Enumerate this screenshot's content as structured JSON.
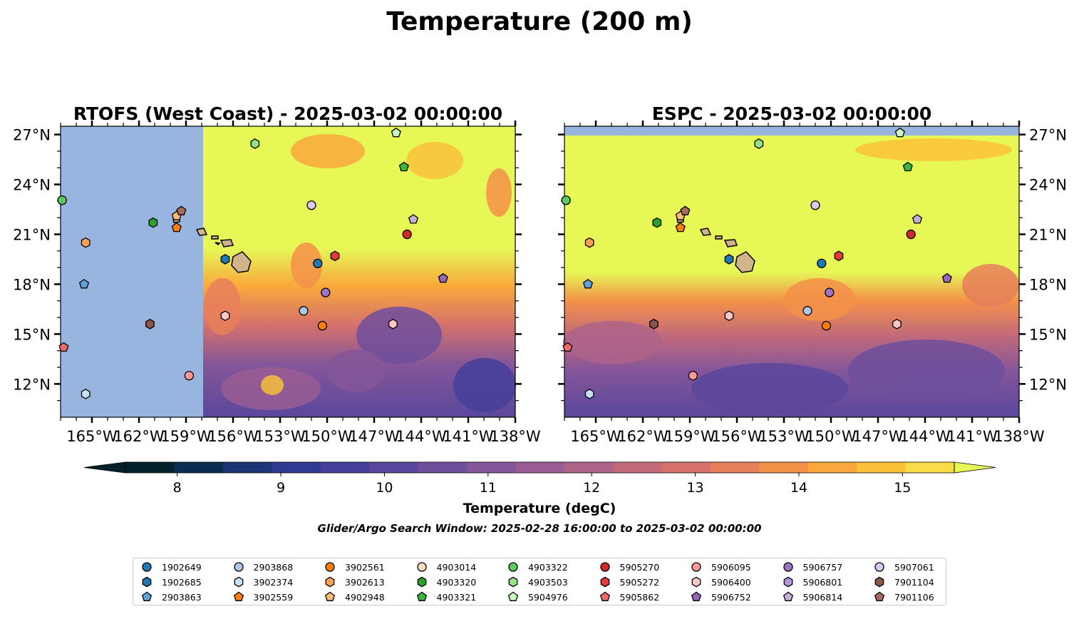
{
  "title": "Temperature (200 m)",
  "panels": [
    {
      "title": "RTOFS (West Coast) - 2025-03-02 00:00:00"
    },
    {
      "title": "ESPC - 2025-03-02 00:00:00"
    }
  ],
  "colorbar": {
    "label": "Temperature (degC)",
    "ticks": [
      "8",
      "9",
      "10",
      "11",
      "12",
      "13",
      "14",
      "15"
    ],
    "range": [
      7.5,
      15.5
    ],
    "step": 0.5,
    "colors": [
      "#03212c",
      "#0a2c4e",
      "#1b3575",
      "#2f3a92",
      "#44409a",
      "#5a479c",
      "#6f4f9c",
      "#845699",
      "#995d93",
      "#ae6389",
      "#c26a7b",
      "#d6726b",
      "#e77f5a",
      "#f49149",
      "#f9a83c",
      "#fbc13a",
      "#f8dc48"
    ],
    "extend_colors": {
      "under": "#03212c",
      "over": "#e6f756"
    }
  },
  "subtitle": "Glider/Argo Search Window: 2025-02-28 16:00:00 to 2025-03-02 00:00:00",
  "map": {
    "lon_range": [
      -167.0,
      -138.0
    ],
    "lat_range": [
      10.0,
      27.5
    ],
    "x_ticks": [
      "165°W",
      "162°W",
      "159°W",
      "156°W",
      "153°W",
      "150°W",
      "147°W",
      "144°W",
      "141°W",
      "138°W"
    ],
    "y_ticks": [
      "27°N",
      "24°N",
      "21°N",
      "18°N",
      "15°N",
      "12°N"
    ],
    "land_color": "#d2b48c",
    "nodata_color": "#98b5e0"
  },
  "legend": [
    {
      "id": "1902649",
      "marker": "circle",
      "color": "#1f77b4"
    },
    {
      "id": "1902685",
      "marker": "hexagon",
      "color": "#1f77b4"
    },
    {
      "id": "2903863",
      "marker": "pentagon",
      "color": "#5fa2dd"
    },
    {
      "id": "2903868",
      "marker": "circle",
      "color": "#aec7e8"
    },
    {
      "id": "3902374",
      "marker": "hexagon",
      "color": "#c6e2f5"
    },
    {
      "id": "3902559",
      "marker": "pentagon",
      "color": "#ff7f0e"
    },
    {
      "id": "3902561",
      "marker": "circle",
      "color": "#ff7f0e"
    },
    {
      "id": "3902613",
      "marker": "hexagon",
      "color": "#ffa055"
    },
    {
      "id": "4902948",
      "marker": "pentagon",
      "color": "#ffbb78"
    },
    {
      "id": "4903014",
      "marker": "circle",
      "color": "#ffdcbc"
    },
    {
      "id": "4903320",
      "marker": "hexagon",
      "color": "#2ca02c"
    },
    {
      "id": "4903321",
      "marker": "pentagon",
      "color": "#3bb83b"
    },
    {
      "id": "4903322",
      "marker": "circle",
      "color": "#5fc95f"
    },
    {
      "id": "4903503",
      "marker": "hexagon",
      "color": "#98df8a"
    },
    {
      "id": "5904976",
      "marker": "pentagon",
      "color": "#ccf5c4"
    },
    {
      "id": "5905270",
      "marker": "circle",
      "color": "#d62728"
    },
    {
      "id": "5905272",
      "marker": "hexagon",
      "color": "#e03a3a"
    },
    {
      "id": "5905862",
      "marker": "pentagon",
      "color": "#ee6a6a"
    },
    {
      "id": "5906095",
      "marker": "circle",
      "color": "#ff9896"
    },
    {
      "id": "5906400",
      "marker": "hexagon",
      "color": "#ffc7c4"
    },
    {
      "id": "5906752",
      "marker": "pentagon",
      "color": "#9467bd"
    },
    {
      "id": "5906757",
      "marker": "circle",
      "color": "#9e75c6"
    },
    {
      "id": "5906801",
      "marker": "hexagon",
      "color": "#b594d8"
    },
    {
      "id": "5906814",
      "marker": "pentagon",
      "color": "#c5b0d5"
    },
    {
      "id": "5907061",
      "marker": "circle",
      "color": "#ddc8f2"
    },
    {
      "id": "7901104",
      "marker": "hexagon",
      "color": "#8c564b"
    },
    {
      "id": "7901106",
      "marker": "pentagon",
      "color": "#a86b5e"
    }
  ],
  "floats": [
    {
      "id": "4903322",
      "lon": -166.9,
      "lat": 23.05
    },
    {
      "id": "2903863",
      "lon": -165.5,
      "lat": 18.0
    },
    {
      "id": "3902613",
      "lon": -165.4,
      "lat": 20.5
    },
    {
      "id": "3902374",
      "lon": -165.4,
      "lat": 11.4
    },
    {
      "id": "5905862",
      "lon": -166.8,
      "lat": 14.2
    },
    {
      "id": "4903320",
      "lon": -161.1,
      "lat": 21.7
    },
    {
      "id": "3902559",
      "lon": -159.6,
      "lat": 21.4
    },
    {
      "id": "4902948",
      "lon": -159.6,
      "lat": 22.1
    },
    {
      "id": "7901106",
      "lon": -159.3,
      "lat": 22.4
    },
    {
      "id": "7901104",
      "lon": -161.3,
      "lat": 15.6
    },
    {
      "id": "5906095",
      "lon": -158.8,
      "lat": 12.5
    },
    {
      "id": "1902685",
      "lon": -156.5,
      "lat": 19.5
    },
    {
      "id": "5906400",
      "lon": -156.5,
      "lat": 16.1
    },
    {
      "id": "4903503",
      "lon": -154.6,
      "lat": 26.45
    },
    {
      "id": "5907061",
      "lon": -151.0,
      "lat": 22.75
    },
    {
      "id": "1902649",
      "lon": -150.6,
      "lat": 19.25
    },
    {
      "id": "5906757",
      "lon": -150.1,
      "lat": 17.5
    },
    {
      "id": "2903868",
      "lon": -151.5,
      "lat": 16.4
    },
    {
      "id": "3902561",
      "lon": -150.3,
      "lat": 15.5
    },
    {
      "id": "5905272",
      "lon": -149.5,
      "lat": 19.7
    },
    {
      "id": "5904976",
      "lon": -145.6,
      "lat": 27.1
    },
    {
      "id": "4903321",
      "lon": -145.1,
      "lat": 25.05
    },
    {
      "id": "5905270",
      "lon": -144.9,
      "lat": 21.0
    },
    {
      "id": "5906814",
      "lon": -144.5,
      "lat": 21.9
    },
    {
      "id": "5906400",
      "lon": -145.8,
      "lat": 15.6
    },
    {
      "id": "5906752",
      "lon": -142.6,
      "lat": 18.35
    }
  ]
}
